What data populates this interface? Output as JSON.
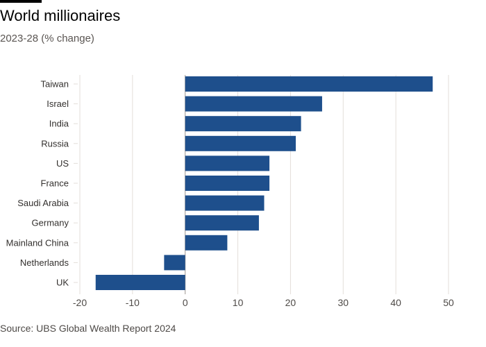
{
  "header": {
    "title": "World millionaires",
    "subtitle": "2023-28 (% change)"
  },
  "footer": {
    "source": "Source: UBS Global Wealth Report 2024"
  },
  "colors": {
    "bar": "#1e4f8c",
    "grid": "#e3ded9",
    "axis": "#9c9690",
    "top_rule": "#000000"
  },
  "chart_data": {
    "type": "bar",
    "orientation": "horizontal",
    "title": "World millionaires",
    "subtitle": "2023-28 (% change)",
    "categories": [
      "Taiwan",
      "Israel",
      "India",
      "Russia",
      "US",
      "France",
      "Saudi Arabia",
      "Germany",
      "Mainland China",
      "Netherlands",
      "UK"
    ],
    "values": [
      47,
      26,
      22,
      21,
      16,
      16,
      15,
      14,
      8,
      -4,
      -17
    ],
    "xlim": [
      -20,
      50
    ],
    "xticks": [
      -20,
      -10,
      0,
      10,
      20,
      30,
      40,
      50
    ],
    "grid": true,
    "legend": "none"
  }
}
